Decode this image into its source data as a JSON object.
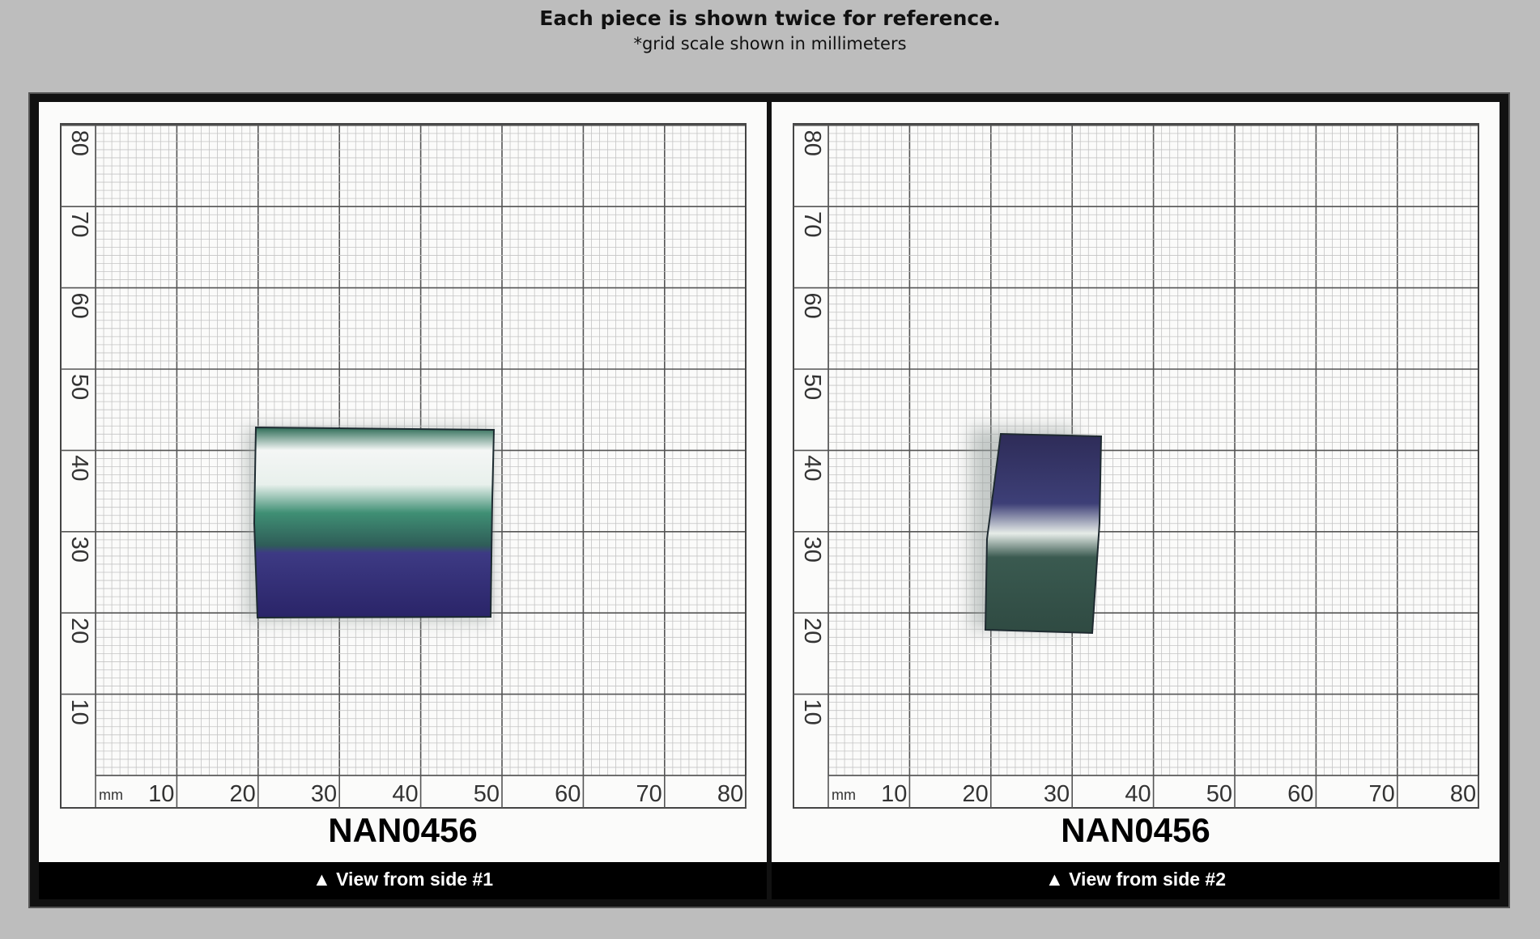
{
  "header": {
    "title": "Each piece is shown twice for reference.",
    "subtitle": "*grid scale shown in millimeters"
  },
  "panels": [
    {
      "unit": "mm",
      "x_labels": [
        "10",
        "20",
        "30",
        "40",
        "50",
        "60",
        "70",
        "80"
      ],
      "y_labels": [
        "10",
        "20",
        "30",
        "40",
        "50",
        "60",
        "70",
        "80"
      ],
      "code": "NAN0456",
      "caption": "▲ View from side #1"
    },
    {
      "unit": "mm",
      "x_labels": [
        "10",
        "20",
        "30",
        "40",
        "50",
        "60",
        "70",
        "80"
      ],
      "y_labels": [
        "10",
        "20",
        "30",
        "40",
        "50",
        "60",
        "70",
        "80"
      ],
      "code": "NAN0456",
      "caption": "▲ View from side #2"
    }
  ]
}
